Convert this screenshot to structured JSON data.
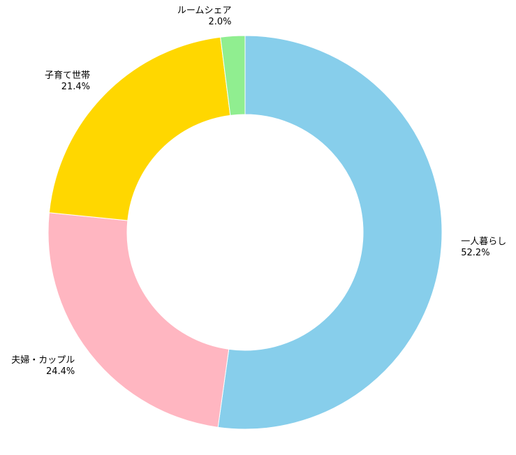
{
  "chart_data": {
    "type": "donut",
    "categories": [
      "一人暮らし",
      "夫婦・カップル",
      "子育て世帯",
      "ルームシェア"
    ],
    "values": [
      52.2,
      24.4,
      21.4,
      2.0
    ],
    "value_labels": [
      "52.2%",
      "24.4%",
      "21.4%",
      "2.0%"
    ],
    "colors": [
      "#87ceeb",
      "#ffb6c1",
      "#ffd700",
      "#90ee90"
    ],
    "start_angle": 90,
    "direction": "clockwise"
  }
}
